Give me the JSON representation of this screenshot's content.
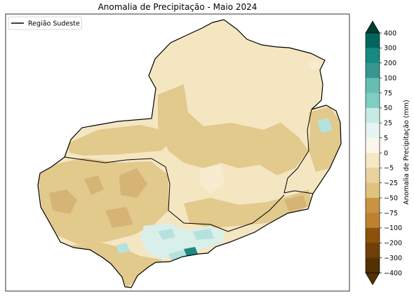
{
  "title": "Anomalia de Precipitação - Maio 2024",
  "legend": {
    "line_label": "Região Sudeste",
    "line_color": "#000000"
  },
  "colorbar": {
    "label": "Anomalia de Precipitação (mm)",
    "ticks": [
      "400",
      "300",
      "200",
      "100",
      "75",
      "50",
      "25",
      "5",
      "0",
      "−5",
      "−25",
      "−50",
      "−75",
      "−100",
      "−200",
      "−300",
      "−400"
    ],
    "colors_top_to_bottom": [
      "#003c30",
      "#01665e",
      "#168a80",
      "#35978f",
      "#66bdb3",
      "#80cdc1",
      "#c7eae5",
      "#e6f5f2",
      "#fbf6ea",
      "#f6e8c3",
      "#e9d29c",
      "#dfc27d",
      "#c99344",
      "#bf812d",
      "#8c510a",
      "#6e3f09",
      "#543005"
    ]
  },
  "colors": {
    "base_land": "#f5e6c2",
    "dry": "#e2c98c",
    "very_dry": "#d6b476",
    "wet_light": "#d9efe9",
    "wet": "#b6e2de",
    "very_wet": "#1e8b80",
    "border": "#000000"
  }
}
